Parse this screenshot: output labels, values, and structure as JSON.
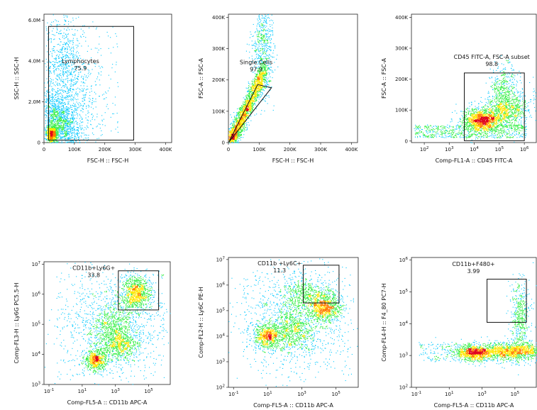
{
  "chart_data": [
    {
      "type": "scatter",
      "subtype": "flow-cytometry-density-dot-plot",
      "xlabel": "FSC-H :: FSC-H",
      "ylabel": "SSC-H :: SSC-H",
      "xscale": "linear",
      "yscale": "linear",
      "xlim": [
        0,
        420000
      ],
      "ylim": [
        0,
        6300000
      ],
      "xticks": [
        {
          "v": 0,
          "t": "0"
        },
        {
          "v": 100000,
          "t": "100K"
        },
        {
          "v": 200000,
          "t": "200K"
        },
        {
          "v": 300000,
          "t": "300K"
        },
        {
          "v": 400000,
          "t": "400K"
        }
      ],
      "yticks": [
        {
          "v": 0,
          "t": "0"
        },
        {
          "v": 2000000,
          "t": "2.0M"
        },
        {
          "v": 4000000,
          "t": "4.0M"
        },
        {
          "v": 6000000,
          "t": "6.0M"
        }
      ],
      "gate": {
        "name": "Lymphocytes",
        "percent": "75.9",
        "shape": "rectangle",
        "x_range": [
          15000,
          295000
        ],
        "y_range": [
          120000,
          5700000
        ]
      },
      "gate_label_at": {
        "x": 120000,
        "y": 3900000
      },
      "population": {
        "center": [
          30000,
          400000
        ],
        "spread": "tight core extending up/right, sparse above to 5.8M"
      }
    },
    {
      "type": "scatter",
      "subtype": "flow-cytometry-density-dot-plot",
      "xlabel": "FSC-H :: FSC-H",
      "ylabel": "FSC-A :: FSC-A",
      "xscale": "linear",
      "yscale": "linear",
      "xlim": [
        0,
        420000
      ],
      "ylim": [
        0,
        410000
      ],
      "xticks": [
        {
          "v": 0,
          "t": "0"
        },
        {
          "v": 100000,
          "t": "100K"
        },
        {
          "v": 200000,
          "t": "200K"
        },
        {
          "v": 300000,
          "t": "300K"
        },
        {
          "v": 400000,
          "t": "400K"
        }
      ],
      "yticks": [
        {
          "v": 0,
          "t": "0"
        },
        {
          "v": 100000,
          "t": "100K"
        },
        {
          "v": 200000,
          "t": "200K"
        },
        {
          "v": 300000,
          "t": "300K"
        },
        {
          "v": 400000,
          "t": "400K"
        }
      ],
      "gate": {
        "name": "Single Cells",
        "percent": "97.9",
        "shape": "polygon",
        "vertices": [
          [
            2000,
            2000
          ],
          [
            8000,
            15000
          ],
          [
            95000,
            185000
          ],
          [
            140000,
            175000
          ]
        ]
      },
      "gate_label_at": {
        "x": 90000,
        "y": 250000
      },
      "population": {
        "center": [
          50000,
          90000
        ],
        "spread": "diagonal band"
      }
    },
    {
      "type": "scatter",
      "subtype": "flow-cytometry-density-dot-plot",
      "xlabel": "Comp-FL1-A :: CD45 FITC-A",
      "ylabel": "FSC-A :: FSC-A",
      "xscale": "biexponential",
      "yscale": "linear",
      "xlim": [
        30,
        3000000
      ],
      "ylim": [
        -5000,
        410000
      ],
      "xticks": [
        {
          "v": 100,
          "t": "10^2"
        },
        {
          "v": 1000,
          "t": "10^3"
        },
        {
          "v": 10000,
          "t": "10^4"
        },
        {
          "v": 100000,
          "t": "10^5"
        },
        {
          "v": 1000000,
          "t": "10^6"
        }
      ],
      "yticks": [
        {
          "v": 0,
          "t": "0"
        },
        {
          "v": 100000,
          "t": "100K"
        },
        {
          "v": 200000,
          "t": "200K"
        },
        {
          "v": 300000,
          "t": "300K"
        },
        {
          "v": 400000,
          "t": "400K"
        }
      ],
      "gate": {
        "name": "CD45 FITC-A, FSC-A subset",
        "percent": "98.8",
        "shape": "rectangle",
        "x_range": [
          4000,
          1000000
        ],
        "y_range": [
          1000,
          220000
        ]
      },
      "gate_label_at": {
        "x": 50000,
        "y": 265000
      },
      "population": {
        "center": [
          40000,
          35000
        ],
        "spread": "broad band rightward"
      }
    },
    {
      "type": "scatter",
      "subtype": "flow-cytometry-density-dot-plot",
      "xlabel": "Comp-FL5-A :: CD11b APC-A",
      "ylabel": "Comp-FL3-H :: Ly6G PC5.5-H",
      "xscale": "log",
      "yscale": "log",
      "xlim": [
        0.05,
        2000000
      ],
      "ylim": [
        1000,
        12000000
      ],
      "xticks": [
        {
          "v": 0.1,
          "t": "10^-1"
        },
        {
          "v": 10,
          "t": "10^1"
        },
        {
          "v": 1000,
          "t": "10^3"
        },
        {
          "v": 100000,
          "t": "10^5"
        }
      ],
      "yticks": [
        {
          "v": 1000,
          "t": "10^3"
        },
        {
          "v": 10000,
          "t": "10^4"
        },
        {
          "v": 100000,
          "t": "10^5"
        },
        {
          "v": 1000000,
          "t": "10^6"
        },
        {
          "v": 10000000,
          "t": "10^7"
        }
      ],
      "gate": {
        "name": "CD11b+Ly6G+",
        "percent": "33.8",
        "shape": "rectangle",
        "x_range": [
          1500,
          400000
        ],
        "y_range": [
          300000,
          6000000
        ]
      },
      "gate_label_at": {
        "x": 50,
        "y": 6500000
      },
      "population": {
        "clusters": [
          [
            20,
            18000
          ],
          [
            35000,
            600000
          ],
          [
            600,
            70000
          ],
          [
            10000,
            30000
          ]
        ]
      }
    },
    {
      "type": "scatter",
      "subtype": "flow-cytometry-density-dot-plot",
      "xlabel": "Comp-FL5-A :: CD11b APC-A",
      "ylabel": "Comp-FL2-H :: Ly6C PE-H",
      "xscale": "log",
      "yscale": "log",
      "xlim": [
        0.05,
        2000000
      ],
      "ylim": [
        100,
        12000000
      ],
      "xticks": [
        {
          "v": 0.1,
          "t": "10^-1"
        },
        {
          "v": 10,
          "t": "10^1"
        },
        {
          "v": 1000,
          "t": "10^3"
        },
        {
          "v": 100000,
          "t": "10^5"
        }
      ],
      "yticks": [
        {
          "v": 100,
          "t": "10^2"
        },
        {
          "v": 1000,
          "t": "10^3"
        },
        {
          "v": 10000,
          "t": "10^4"
        },
        {
          "v": 100000,
          "t": "10^5"
        },
        {
          "v": 1000000,
          "t": "10^6"
        },
        {
          "v": 10000000,
          "t": "10^7"
        }
      ],
      "gate": {
        "name": "CD11b +Ly6C+",
        "percent": "11.3",
        "shape": "rectangle",
        "x_range": [
          1200,
          150000
        ],
        "y_range": [
          200000,
          6000000
        ]
      },
      "gate_label_at": {
        "x": 50,
        "y": 6000000
      },
      "population": {
        "clusters": [
          [
            150,
            15000
          ],
          [
            40000,
            200000
          ],
          [
            1000,
            20000
          ],
          [
            6000,
            600000
          ]
        ]
      }
    },
    {
      "type": "scatter",
      "subtype": "flow-cytometry-density-dot-plot",
      "xlabel": "Comp-FL5-A :: CD11b APC-A",
      "ylabel": "Comp-FL4-H :: F4_80 PC7-H",
      "xscale": "log",
      "yscale": "log",
      "xlim": [
        0.05,
        2000000
      ],
      "ylim": [
        100,
        1200000
      ],
      "xticks": [
        {
          "v": 0.1,
          "t": "10^-1"
        },
        {
          "v": 10,
          "t": "10^1"
        },
        {
          "v": 1000,
          "t": "10^3"
        },
        {
          "v": 100000,
          "t": "10^5"
        }
      ],
      "yticks": [
        {
          "v": 100,
          "t": "10^2"
        },
        {
          "v": 1000,
          "t": "10^3"
        },
        {
          "v": 10000,
          "t": "10^4"
        },
        {
          "v": 100000,
          "t": "10^5"
        },
        {
          "v": 1000000,
          "t": "10^6"
        }
      ],
      "gate": {
        "name": "CD11b+F480+",
        "percent": "3.99",
        "shape": "rectangle",
        "x_range": [
          2000,
          500000
        ],
        "y_range": [
          11000,
          250000
        ]
      },
      "gate_label_at": {
        "x": 300,
        "y": 650000
      },
      "population": {
        "clusters": [
          [
            500,
            1300
          ],
          [
            50000,
            1500
          ],
          [
            30000,
            20000
          ]
        ]
      }
    }
  ]
}
